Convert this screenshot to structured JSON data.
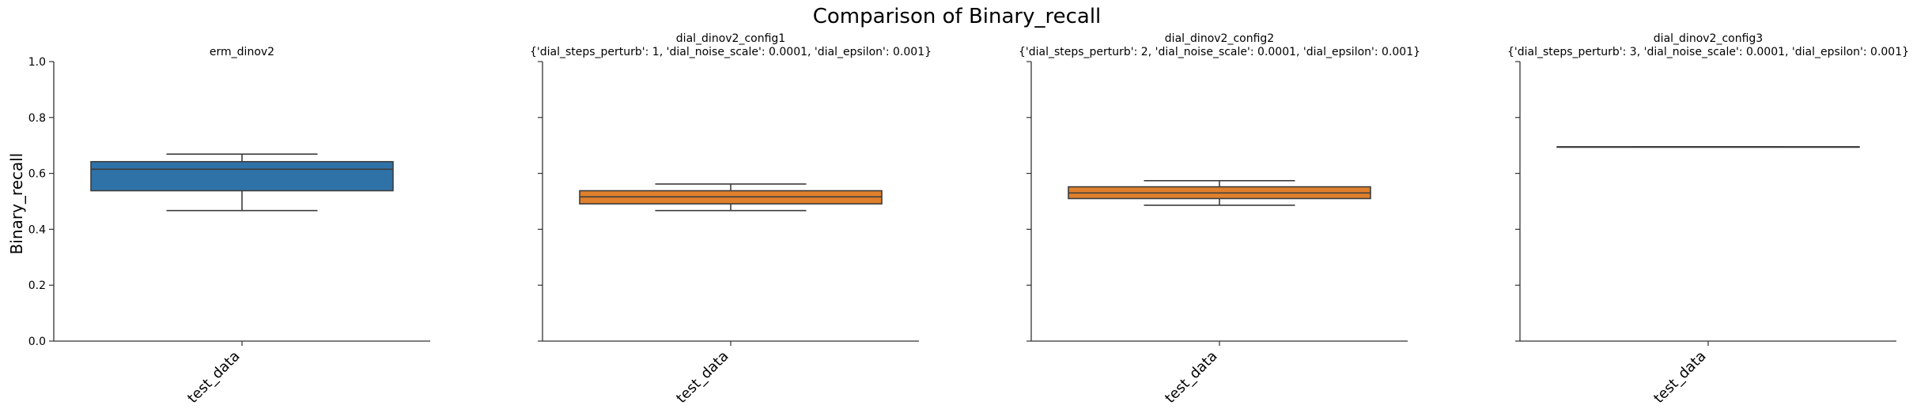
{
  "figure": {
    "title": "Comparison of Binary_recall",
    "ylabel": "Binary_recall"
  },
  "chart_data": [
    {
      "type": "box",
      "title": "erm_dinov2",
      "subtitle": "",
      "categories": [
        "test_data"
      ],
      "ylim": [
        0,
        1
      ],
      "yticks": [
        "0.0",
        "0.2",
        "0.4",
        "0.6",
        "0.8",
        "1.0"
      ],
      "color": "#2f72a8",
      "box": {
        "whisker_low": 0.467,
        "q1": 0.538,
        "median": 0.615,
        "q3": 0.642,
        "whisker_high": 0.669
      }
    },
    {
      "type": "box",
      "title": "dial_dinov2_config1",
      "subtitle": "{'dial_steps_perturb': 1, 'dial_noise_scale': 0.0001, 'dial_epsilon': 0.001}",
      "categories": [
        "test_data"
      ],
      "ylim": [
        0,
        1
      ],
      "color": "#e0802c",
      "box": {
        "whisker_low": 0.467,
        "q1": 0.491,
        "median": 0.516,
        "q3": 0.538,
        "whisker_high": 0.562
      }
    },
    {
      "type": "box",
      "title": "dial_dinov2_config2",
      "subtitle": "{'dial_steps_perturb': 2, 'dial_noise_scale': 0.0001, 'dial_epsilon': 0.001}",
      "categories": [
        "test_data"
      ],
      "ylim": [
        0,
        1
      ],
      "color": "#e0802c",
      "box": {
        "whisker_low": 0.486,
        "q1": 0.51,
        "median": 0.53,
        "q3": 0.552,
        "whisker_high": 0.574
      }
    },
    {
      "type": "box",
      "title": "dial_dinov2_config3",
      "subtitle": "{'dial_steps_perturb': 3, 'dial_noise_scale': 0.0001, 'dial_epsilon': 0.001}",
      "categories": [
        "test_data"
      ],
      "ylim": [
        0,
        1
      ],
      "color": "#e0802c",
      "box": {
        "whisker_low": 0.695,
        "q1": 0.695,
        "median": 0.695,
        "q3": 0.695,
        "whisker_high": 0.695
      }
    }
  ]
}
